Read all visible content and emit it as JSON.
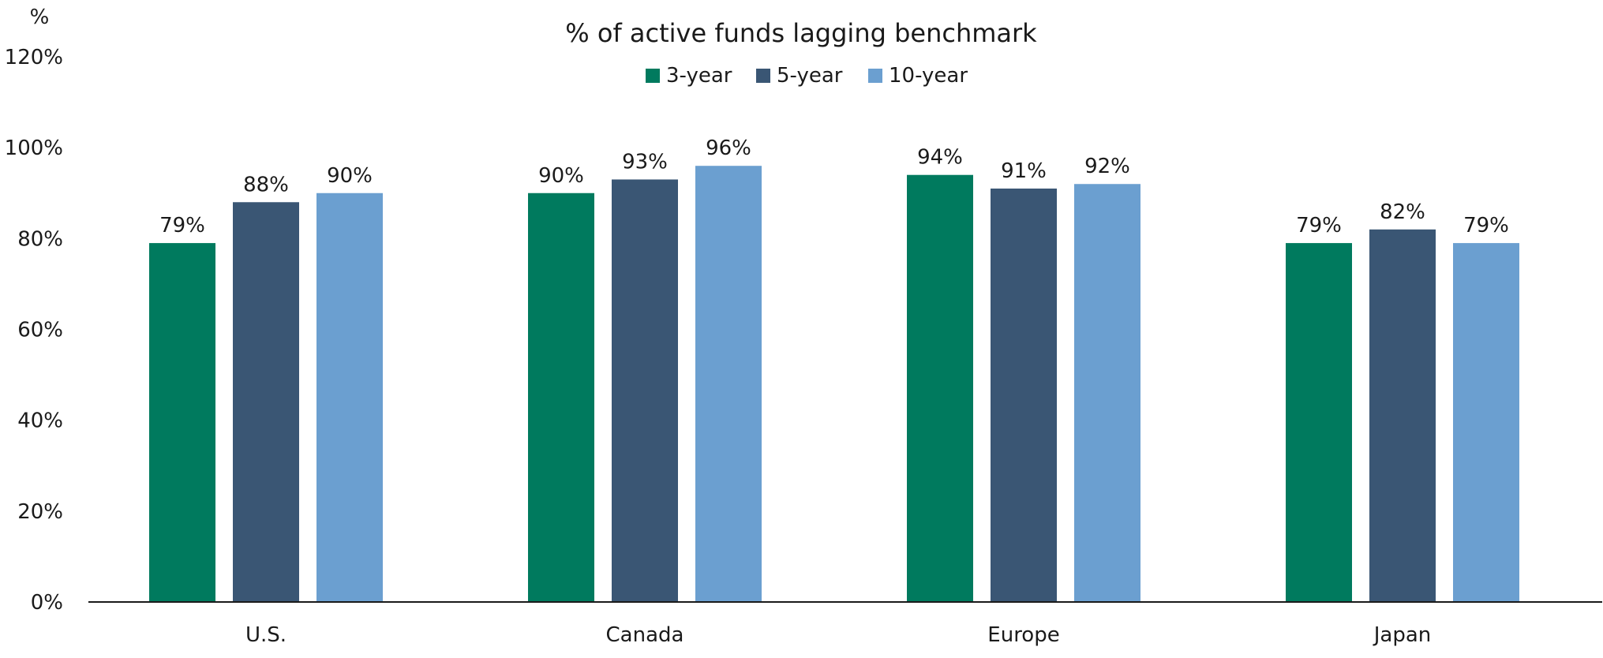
{
  "chart_data": {
    "type": "bar",
    "title": "% of active funds lagging benchmark",
    "unit_label": "%",
    "xlabel": "",
    "ylabel": "",
    "ylim": [
      0,
      120
    ],
    "yticks": [
      0,
      20,
      40,
      60,
      80,
      100,
      120
    ],
    "ytick_labels": [
      "0%",
      "20%",
      "40%",
      "60%",
      "80%",
      "100%",
      "120%"
    ],
    "categories": [
      "U.S.",
      "Canada",
      "Europe",
      "Japan"
    ],
    "series": [
      {
        "name": "3-year",
        "color": "#007A5E",
        "values": [
          79,
          90,
          94,
          79
        ],
        "labels": [
          "79%",
          "90%",
          "94%",
          "79%"
        ]
      },
      {
        "name": "5-year",
        "color": "#3A5674",
        "values": [
          88,
          93,
          91,
          82
        ],
        "labels": [
          "88%",
          "93%",
          "91%",
          "82%"
        ]
      },
      {
        "name": "10-year",
        "color": "#6B9FD0",
        "values": [
          90,
          96,
          92,
          79
        ],
        "labels": [
          "90%",
          "96%",
          "92%",
          "79%"
        ]
      }
    ],
    "legend_position": "top-center",
    "grid": false
  }
}
